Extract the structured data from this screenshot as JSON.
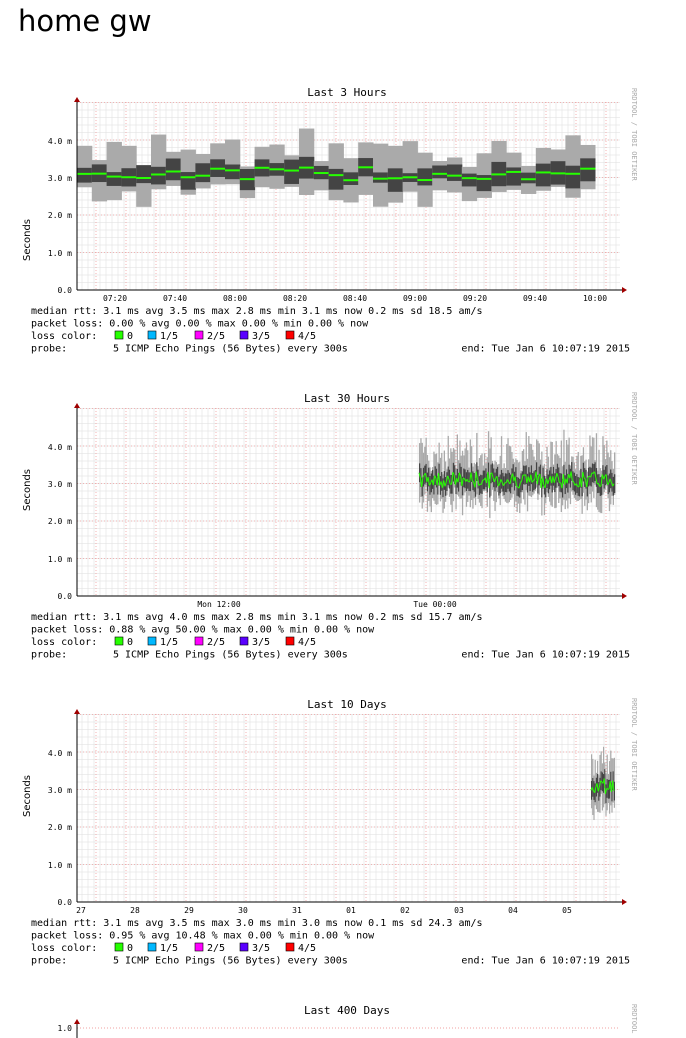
{
  "page": {
    "title": "home gw"
  },
  "colors": {
    "loss0": "#26ff00",
    "loss1": "#00b8ff",
    "loss2": "#ff00ff",
    "loss3": "#5a00ff",
    "loss4": "#ff0000",
    "grid_minor": "#dddddd",
    "grid_major": "#f0a0a0",
    "rtt_dark": "#444444",
    "rtt_light": "#aaaaaa"
  },
  "watermark": "RRDTOOL / TOBI OETIKER",
  "watermark_short": "RRDTOOL",
  "graphs": [
    {
      "title": "Last 3 Hours",
      "ylabel": "Seconds",
      "yticks": [
        "0.0",
        "1.0 m",
        "2.0 m",
        "3.0 m",
        "4.0 m"
      ],
      "xticks": [
        "07:20",
        "07:40",
        "08:00",
        "08:20",
        "08:40",
        "09:00",
        "09:20",
        "09:40",
        "10:00"
      ],
      "legend": {
        "median": "median rtt:   3.1 ms avg   3.5 ms max   2.8 ms min   3.1 ms now   0.2 ms sd  18.5   am/s",
        "loss": "packet loss: 0.00 % avg   0.00 % max   0.00 % min   0.00 % now",
        "color_label": "loss color:",
        "loss_levels": [
          "0",
          "1/5",
          "2/5",
          "3/5",
          "4/5"
        ],
        "probe_label": "probe:",
        "probe": "5 ICMP Echo Pings (56 Bytes) every 300s",
        "end": "end: Tue Jan  6 10:07:19 2015"
      }
    },
    {
      "title": "Last 30 Hours",
      "ylabel": "Seconds",
      "yticks": [
        "0.0",
        "1.0 m",
        "2.0 m",
        "3.0 m",
        "4.0 m"
      ],
      "xticks": [
        "Mon 12:00",
        "Tue 00:00"
      ],
      "legend": {
        "median": "median rtt:   3.1 ms avg   4.0 ms max   2.8 ms min   3.1 ms now   0.2 ms sd  15.7   am/s",
        "loss": "packet loss: 0.88 % avg  50.00 % max   0.00 % min   0.00 % now",
        "color_label": "loss color:",
        "loss_levels": [
          "0",
          "1/5",
          "2/5",
          "3/5",
          "4/5"
        ],
        "probe_label": "probe:",
        "probe": "5 ICMP Echo Pings (56 Bytes) every 300s",
        "end": "end: Tue Jan  6 10:07:19 2015"
      }
    },
    {
      "title": "Last 10 Days",
      "ylabel": "Seconds",
      "yticks": [
        "0.0",
        "1.0 m",
        "2.0 m",
        "3.0 m",
        "4.0 m"
      ],
      "xticks": [
        "27",
        "28",
        "29",
        "30",
        "31",
        "01",
        "02",
        "03",
        "04",
        "05"
      ],
      "legend": {
        "median": "median rtt:   3.1 ms avg   3.5 ms max   3.0 ms min   3.0 ms now   0.1 ms sd  24.3   am/s",
        "loss": "packet loss: 0.95 % avg  10.48 % max   0.00 % min   0.00 % now",
        "color_label": "loss color:",
        "loss_levels": [
          "0",
          "1/5",
          "2/5",
          "3/5",
          "4/5"
        ],
        "probe_label": "probe:",
        "probe": "5 ICMP Echo Pings (56 Bytes) every 300s",
        "end": "end: Tue Jan  6 10:07:19 2015"
      }
    },
    {
      "title": "Last 400 Days",
      "ylabel": "",
      "yticks": [
        "1.0"
      ]
    }
  ]
}
